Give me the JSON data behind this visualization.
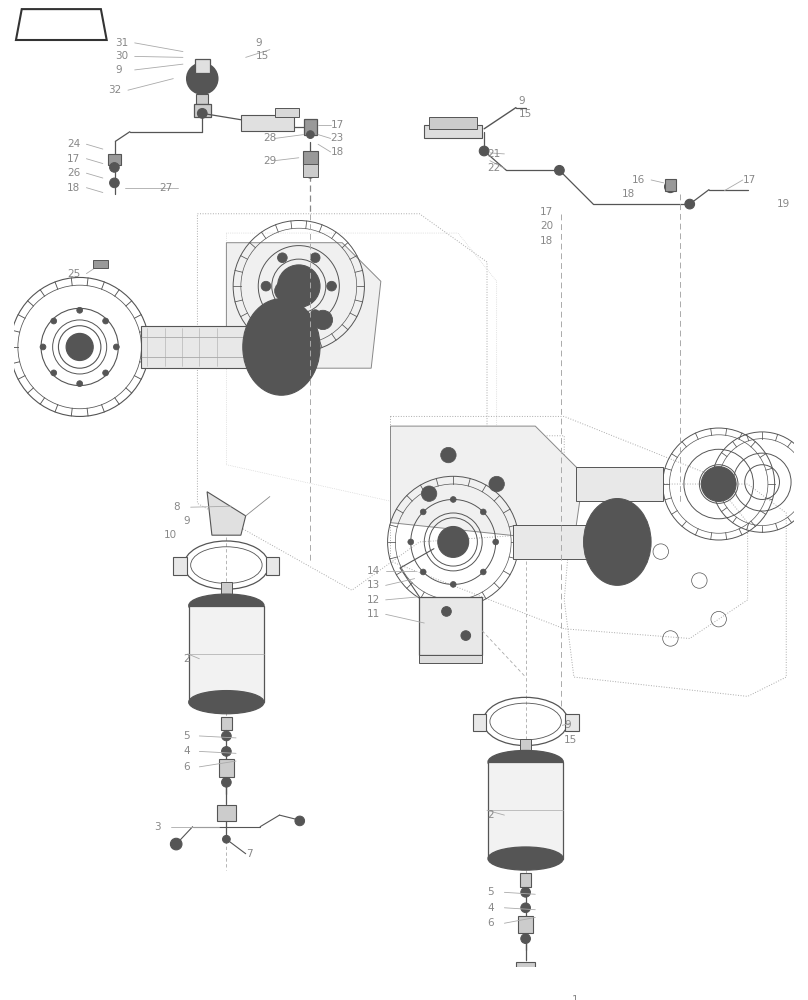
{
  "bg_color": "#ffffff",
  "lc": "#555555",
  "dc": "#333333",
  "tc": "#888888",
  "fig_w": 8.08,
  "fig_h": 10.0,
  "dpi": 100
}
